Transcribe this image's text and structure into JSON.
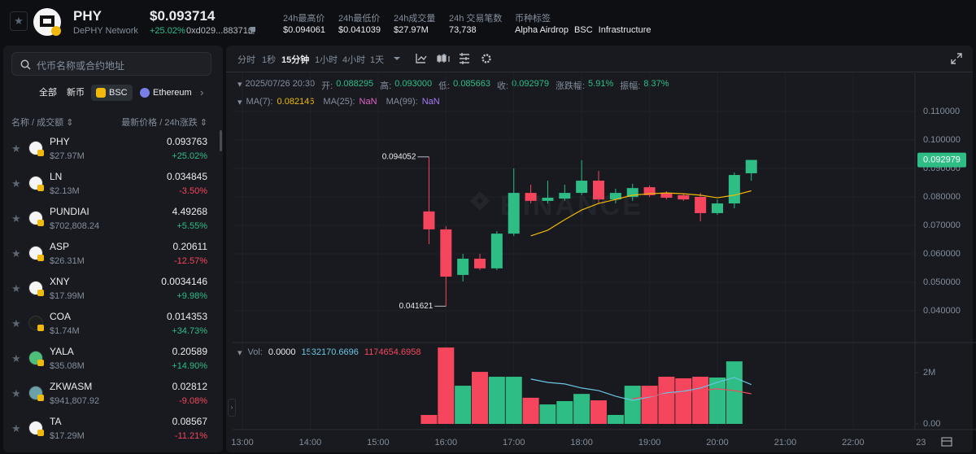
{
  "header": {
    "symbol": "PHY",
    "name": "DePHY Network",
    "price": "$0.093714",
    "change": "+25.02%",
    "address": "0xd029...883716",
    "stats": [
      {
        "label": "24h最高价",
        "value": "$0.094061"
      },
      {
        "label": "24h最低价",
        "value": "$0.041039"
      },
      {
        "label": "24h成交量",
        "value": "$27.97M"
      },
      {
        "label": "24h 交易笔数",
        "value": "73,738"
      }
    ],
    "tags_label": "币种标签",
    "tags": [
      "Alpha Airdrop",
      "BSC",
      "Infrastructure"
    ]
  },
  "sidebar": {
    "search_placeholder": "代币名称或合约地址",
    "tabs": [
      "全部",
      "新币",
      "BSC",
      "Ethereum"
    ],
    "col_left": "名称 / 成交额",
    "col_right": "最新价格 / 24h涨跌",
    "rows": [
      {
        "symbol": "PHY",
        "volume": "$27.97M",
        "price": "0.093763",
        "change": "+25.02%"
      },
      {
        "symbol": "LN",
        "volume": "$2.13M",
        "price": "0.034845",
        "change": "-3.50%"
      },
      {
        "symbol": "PUNDIAI",
        "volume": "$702,808.24",
        "price": "4.49268",
        "change": "+5.55%"
      },
      {
        "symbol": "ASP",
        "volume": "$26.31M",
        "price": "0.20611",
        "change": "-12.57%"
      },
      {
        "symbol": "XNY",
        "volume": "$17.99M",
        "price": "0.0034146",
        "change": "+9.98%"
      },
      {
        "symbol": "COA",
        "volume": "$1.74M",
        "price": "0.014353",
        "change": "+34.73%"
      },
      {
        "symbol": "YALA",
        "volume": "$35.08M",
        "price": "0.20589",
        "change": "+14.90%"
      },
      {
        "symbol": "ZKWASM",
        "volume": "$941,807.92",
        "price": "0.02812",
        "change": "-9.08%"
      },
      {
        "symbol": "TA",
        "volume": "$17.29M",
        "price": "0.08567",
        "change": "-11.21%"
      }
    ]
  },
  "toolbar": {
    "intervals": [
      "分时",
      "1秒",
      "15分钟",
      "1小时",
      "4小时",
      "1天"
    ]
  },
  "chart_data": {
    "type": "candlestick",
    "watermark": "BINANCE",
    "info": {
      "time": "2025/07/26 20:30",
      "items": [
        {
          "label": "开:",
          "value": "0.088295"
        },
        {
          "label": "高:",
          "value": "0.093000"
        },
        {
          "label": "低:",
          "value": "0.085663"
        },
        {
          "label": "收:",
          "value": "0.092979"
        },
        {
          "label": "涨跌幅:",
          "value": "5.91%"
        },
        {
          "label": "振幅:",
          "value": "8.37%"
        }
      ]
    },
    "up_color": "#2ebd85",
    "down_color": "#f6465d",
    "xlim": [
      12.856,
      23.2
    ],
    "xticks": [
      {
        "value": 13,
        "label": "13:00"
      },
      {
        "value": 14,
        "label": "14:00"
      },
      {
        "value": 15,
        "label": "15:00"
      },
      {
        "value": 16,
        "label": "16:00"
      },
      {
        "value": 17,
        "label": "17:00"
      },
      {
        "value": 18,
        "label": "18:00"
      },
      {
        "value": 19,
        "label": "19:00"
      },
      {
        "value": 20,
        "label": "20:00"
      },
      {
        "value": 21,
        "label": "21:00"
      },
      {
        "value": 22,
        "label": "22:00"
      },
      {
        "value": 23,
        "label": "23"
      }
    ],
    "ylim": [
      0.02914,
      0.12343
    ],
    "yticks": [
      {
        "value": 0.04,
        "label": "0.040000"
      },
      {
        "value": 0.05,
        "label": "0.050000"
      },
      {
        "value": 0.06,
        "label": "0.060000"
      },
      {
        "value": 0.07,
        "label": "0.070000"
      },
      {
        "value": 0.08,
        "label": "0.080000"
      },
      {
        "value": 0.09,
        "label": "0.090000"
      },
      {
        "value": 0.1,
        "label": "0.100000"
      },
      {
        "value": 0.11,
        "label": "0.110000"
      }
    ],
    "x": [
      15.75,
      16,
      16.25,
      16.5,
      16.75,
      17,
      17.25,
      17.5,
      17.75,
      18,
      18.25,
      18.5,
      18.75,
      19,
      19.25,
      19.5,
      19.75,
      20,
      20.25,
      20.5
    ],
    "open": [
      0.0749,
      0.0686,
      0.0526,
      0.0583,
      0.0549,
      0.0671,
      0.0814,
      0.0786,
      0.0794,
      0.0814,
      0.0857,
      0.0791,
      0.08,
      0.0834,
      0.0814,
      0.0806,
      0.08,
      0.0743,
      0.0777,
      0.088295
    ],
    "high": [
      0.094052,
      0.0697,
      0.06,
      0.06,
      0.068,
      0.09,
      0.0843,
      0.0857,
      0.0843,
      0.0929,
      0.0891,
      0.0829,
      0.0846,
      0.084,
      0.082,
      0.0811,
      0.0814,
      0.0791,
      0.0886,
      0.093
    ],
    "low": [
      0.0634,
      0.041621,
      0.0503,
      0.0543,
      0.0543,
      0.0663,
      0.0777,
      0.0777,
      0.0786,
      0.0806,
      0.0777,
      0.0777,
      0.0786,
      0.08,
      0.0791,
      0.0786,
      0.0714,
      0.0737,
      0.076,
      0.085663
    ],
    "close": [
      0.0686,
      0.052,
      0.0583,
      0.0549,
      0.0671,
      0.0814,
      0.0786,
      0.0797,
      0.0814,
      0.0857,
      0.0791,
      0.0814,
      0.0831,
      0.0806,
      0.0797,
      0.0791,
      0.0743,
      0.0777,
      0.0877,
      0.092979
    ],
    "annotations": [
      {
        "x": 15.75,
        "y": 0.094052,
        "label": "0.094052"
      },
      {
        "x": 16,
        "y": 0.041621,
        "label": "0.041621"
      }
    ],
    "last_price": {
      "value": 0.092979,
      "label": "0.092979"
    },
    "ma_series": [
      {
        "name": "MA(7):",
        "color": "#f0b90b",
        "value_label": "0.082146",
        "values": [
          null,
          null,
          null,
          null,
          null,
          null,
          0.0663,
          0.0683,
          0.072,
          0.0754,
          0.0777,
          0.0791,
          0.0806,
          0.0811,
          0.0814,
          0.0811,
          0.0806,
          0.0797,
          0.0806,
          0.082146
        ]
      },
      {
        "name": "MA(25):",
        "color": "#e062c4",
        "value_label": "NaN"
      },
      {
        "name": "MA(99):",
        "color": "#a77bf3",
        "value_label": "NaN"
      }
    ],
    "volume": {
      "label": "Vol:",
      "readout": "0.0000",
      "ylim": [
        -222000,
        3111000
      ],
      "yticks": [
        {
          "value": 0,
          "label": "0.00"
        },
        {
          "value": 2000000,
          "label": "2M"
        }
      ],
      "values": [
        350000,
        2980000,
        1490000,
        2030000,
        1840000,
        1840000,
        1020000,
        760000,
        890000,
        1170000,
        920000,
        350000,
        1490000,
        1490000,
        1840000,
        1780000,
        1840000,
        1810000,
        2440000,
        0
      ],
      "ma_series": [
        {
          "color": "#6bc5e3",
          "value_label": "1532170.6696",
          "values": [
            null,
            null,
            null,
            null,
            null,
            null,
            1750000,
            1620000,
            1560000,
            1400000,
            1300000,
            1080000,
            920000,
            1050000,
            1210000,
            1270000,
            1400000,
            1620000,
            1810000,
            1532170.6696
          ]
        },
        {
          "color": "#f6465d",
          "value_label": "1174654.6958",
          "values": [
            null,
            null,
            null,
            null,
            null,
            null,
            null,
            null,
            null,
            null,
            null,
            null,
            980000,
            1080000,
            1170000,
            1240000,
            1300000,
            1370000,
            1300000,
            1174654.6958
          ]
        }
      ]
    }
  }
}
